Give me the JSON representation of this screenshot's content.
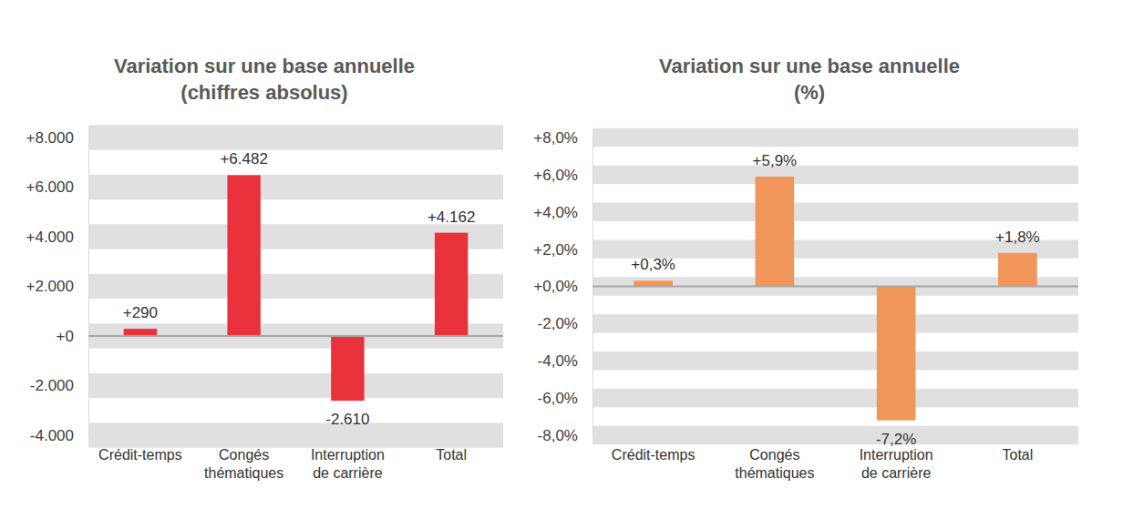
{
  "chart_data": [
    {
      "type": "bar",
      "title": "Variation sur une base annuelle",
      "subtitle": "(chiffres absolus)",
      "categories": [
        "Crédit-temps",
        "Congés thématiques",
        "Interruption de carrière",
        "Total"
      ],
      "values": [
        290,
        6482,
        -2610,
        4162
      ],
      "value_labels": [
        "+290",
        "+6.482",
        "-2.610",
        "+4.162"
      ],
      "color": "#e8313a",
      "ylim": [
        -4000,
        8000
      ],
      "yticks": [
        {
          "value": 8000,
          "label": "+8.000"
        },
        {
          "value": 6000,
          "label": "+6.000"
        },
        {
          "value": 4000,
          "label": "+4.000"
        },
        {
          "value": 2000,
          "label": "+2.000"
        },
        {
          "value": 0,
          "label": "+0"
        },
        {
          "value": -2000,
          "label": "-2.000"
        },
        {
          "value": -4000,
          "label": "-4.000"
        }
      ],
      "grid": true,
      "data_labels": true
    },
    {
      "type": "bar",
      "title": "Variation sur une base annuelle",
      "subtitle": "(%)",
      "categories": [
        "Crédit-temps",
        "Congés thématiques",
        "Interruption de carrière",
        "Total"
      ],
      "values": [
        0.3,
        5.9,
        -7.2,
        1.8
      ],
      "value_labels": [
        "+0,3%",
        "+5,9%",
        "-7,2%",
        "+1,8%"
      ],
      "color": "#f0965a",
      "ylim": [
        -8,
        8
      ],
      "yticks": [
        {
          "value": 8,
          "label": "+8,0%"
        },
        {
          "value": 6,
          "label": "+6,0%"
        },
        {
          "value": 4,
          "label": "+4,0%"
        },
        {
          "value": 2,
          "label": "+2,0%"
        },
        {
          "value": 0,
          "label": "+0,0%"
        },
        {
          "value": -2,
          "label": "-2,0%"
        },
        {
          "value": -4,
          "label": "-4,0%"
        },
        {
          "value": -6,
          "label": "-6,0%"
        },
        {
          "value": -8,
          "label": "-8,0%"
        }
      ],
      "grid": true,
      "data_labels": true
    }
  ]
}
